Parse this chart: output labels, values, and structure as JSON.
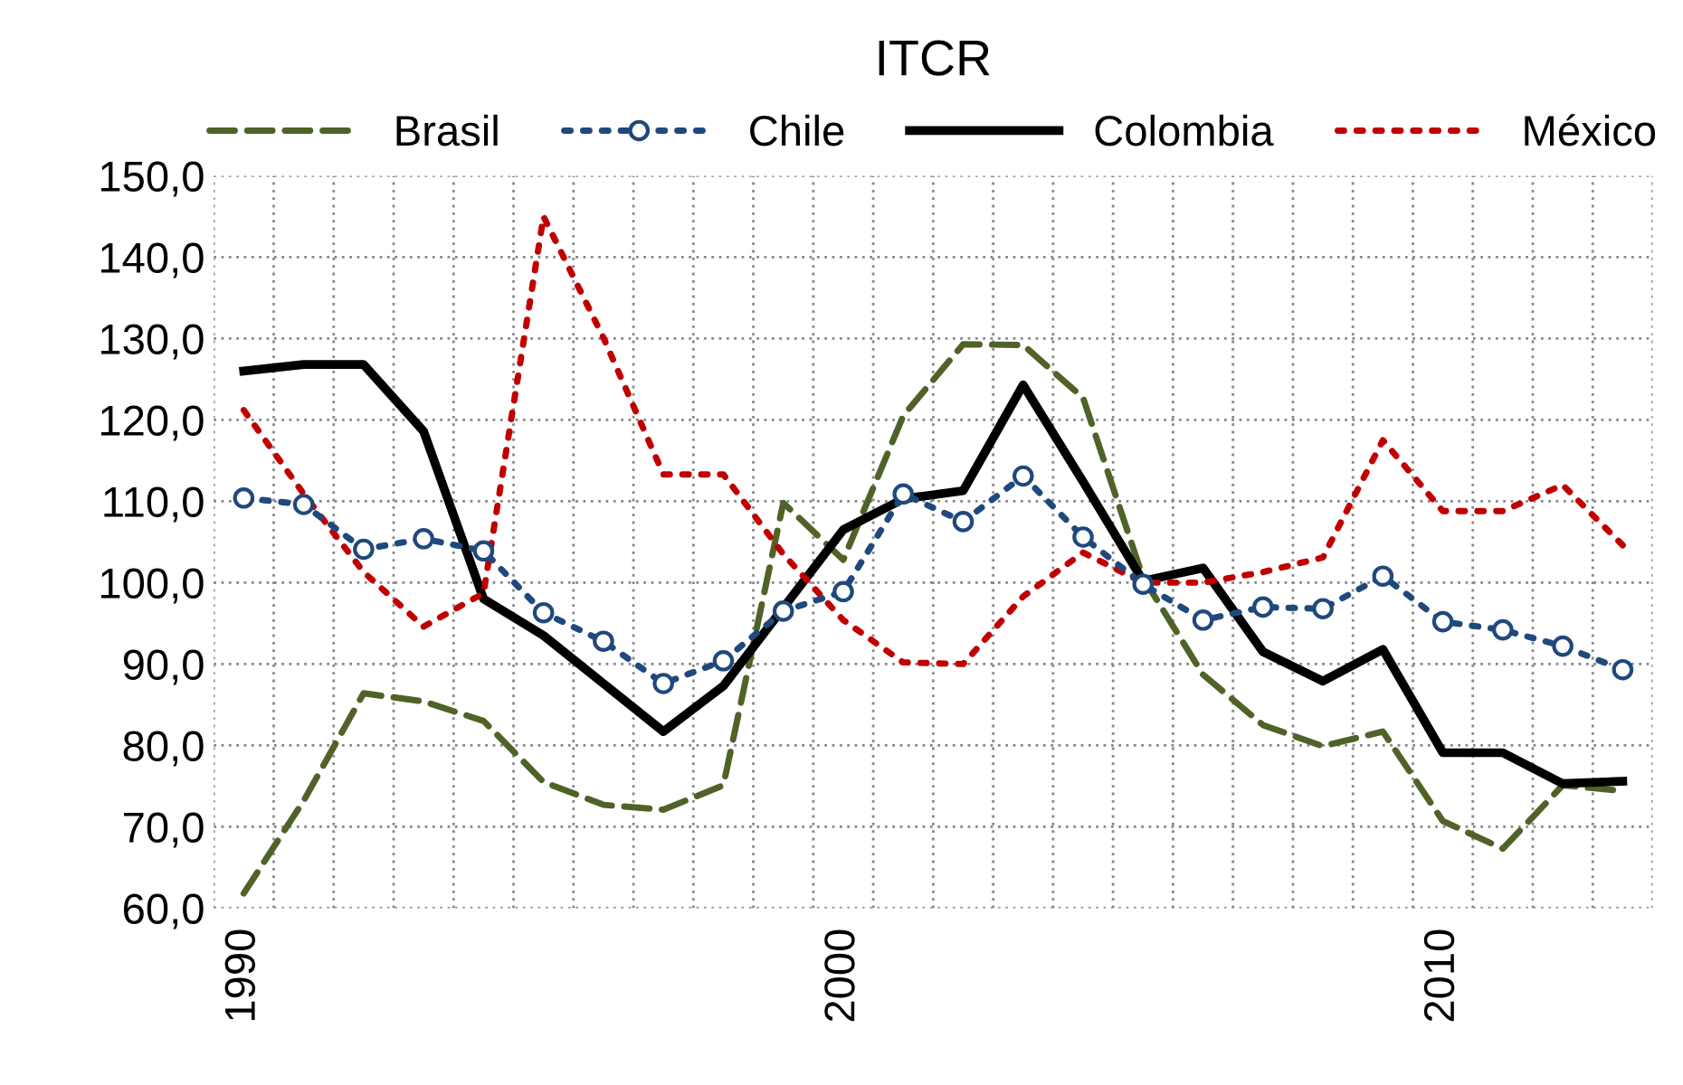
{
  "chart_data": {
    "type": "line",
    "title": "ITCR",
    "categories": [
      "1990",
      null,
      null,
      null,
      null,
      null,
      null,
      null,
      null,
      null,
      "2000",
      null,
      null,
      null,
      null,
      null,
      null,
      null,
      null,
      null,
      "2010",
      null,
      null,
      null
    ],
    "series": [
      {
        "name": "Brasil",
        "color": "#4f6228",
        "line_style": "dashed",
        "marker": "none",
        "values": [
          61.8,
          73.2,
          86.4,
          85.4,
          83.0,
          75.5,
          72.7,
          72.1,
          75.1,
          109.8,
          102.8,
          120.5,
          129.3,
          129.2,
          122.7,
          100.6,
          88.7,
          82.5,
          79.9,
          81.7,
          70.7,
          67.3,
          75.1,
          74.4
        ]
      },
      {
        "name": "Chile",
        "color": "#1f497d",
        "line_style": "dotted",
        "marker": "circle",
        "values": [
          110.4,
          109.6,
          104.1,
          105.4,
          103.9,
          96.3,
          92.8,
          87.6,
          90.4,
          96.5,
          98.9,
          110.9,
          107.5,
          113.1,
          105.6,
          99.8,
          95.4,
          97.0,
          96.8,
          100.8,
          95.2,
          94.2,
          92.2,
          89.3
        ]
      },
      {
        "name": "Colombia",
        "color": "#000000",
        "line_style": "solid",
        "marker": "none",
        "values": [
          126.0,
          126.8,
          126.8,
          118.6,
          98.0,
          93.5,
          87.6,
          81.7,
          87.3,
          96.9,
          106.5,
          110.3,
          111.3,
          124.3,
          112.4,
          100.2,
          101.8,
          91.5,
          87.9,
          91.8,
          79.1,
          79.1,
          75.3,
          75.6
        ]
      },
      {
        "name": "México",
        "color": "#c00000",
        "line_style": "dotted",
        "marker": "none",
        "values": [
          121.2,
          110.9,
          101.3,
          94.6,
          98.7,
          145.0,
          130.1,
          113.3,
          113.3,
          103.5,
          95.4,
          90.2,
          90.0,
          98.3,
          103.7,
          100.0,
          100.0,
          101.3,
          103.1,
          117.5,
          108.8,
          108.8,
          112.0,
          104.6
        ]
      }
    ],
    "ylim": [
      60,
      150
    ],
    "yticks": [
      {
        "value": 60,
        "label": "60,0"
      },
      {
        "value": 70,
        "label": "70,0"
      },
      {
        "value": 80,
        "label": "80,0"
      },
      {
        "value": 90,
        "label": "90,0"
      },
      {
        "value": 100,
        "label": "100,0"
      },
      {
        "value": 110,
        "label": "110,0"
      },
      {
        "value": 120,
        "label": "120,0"
      },
      {
        "value": 130,
        "label": "130,0"
      },
      {
        "value": 140,
        "label": "140,0"
      },
      {
        "value": 150,
        "label": "150,0"
      }
    ],
    "grid": true,
    "legend": "top"
  }
}
